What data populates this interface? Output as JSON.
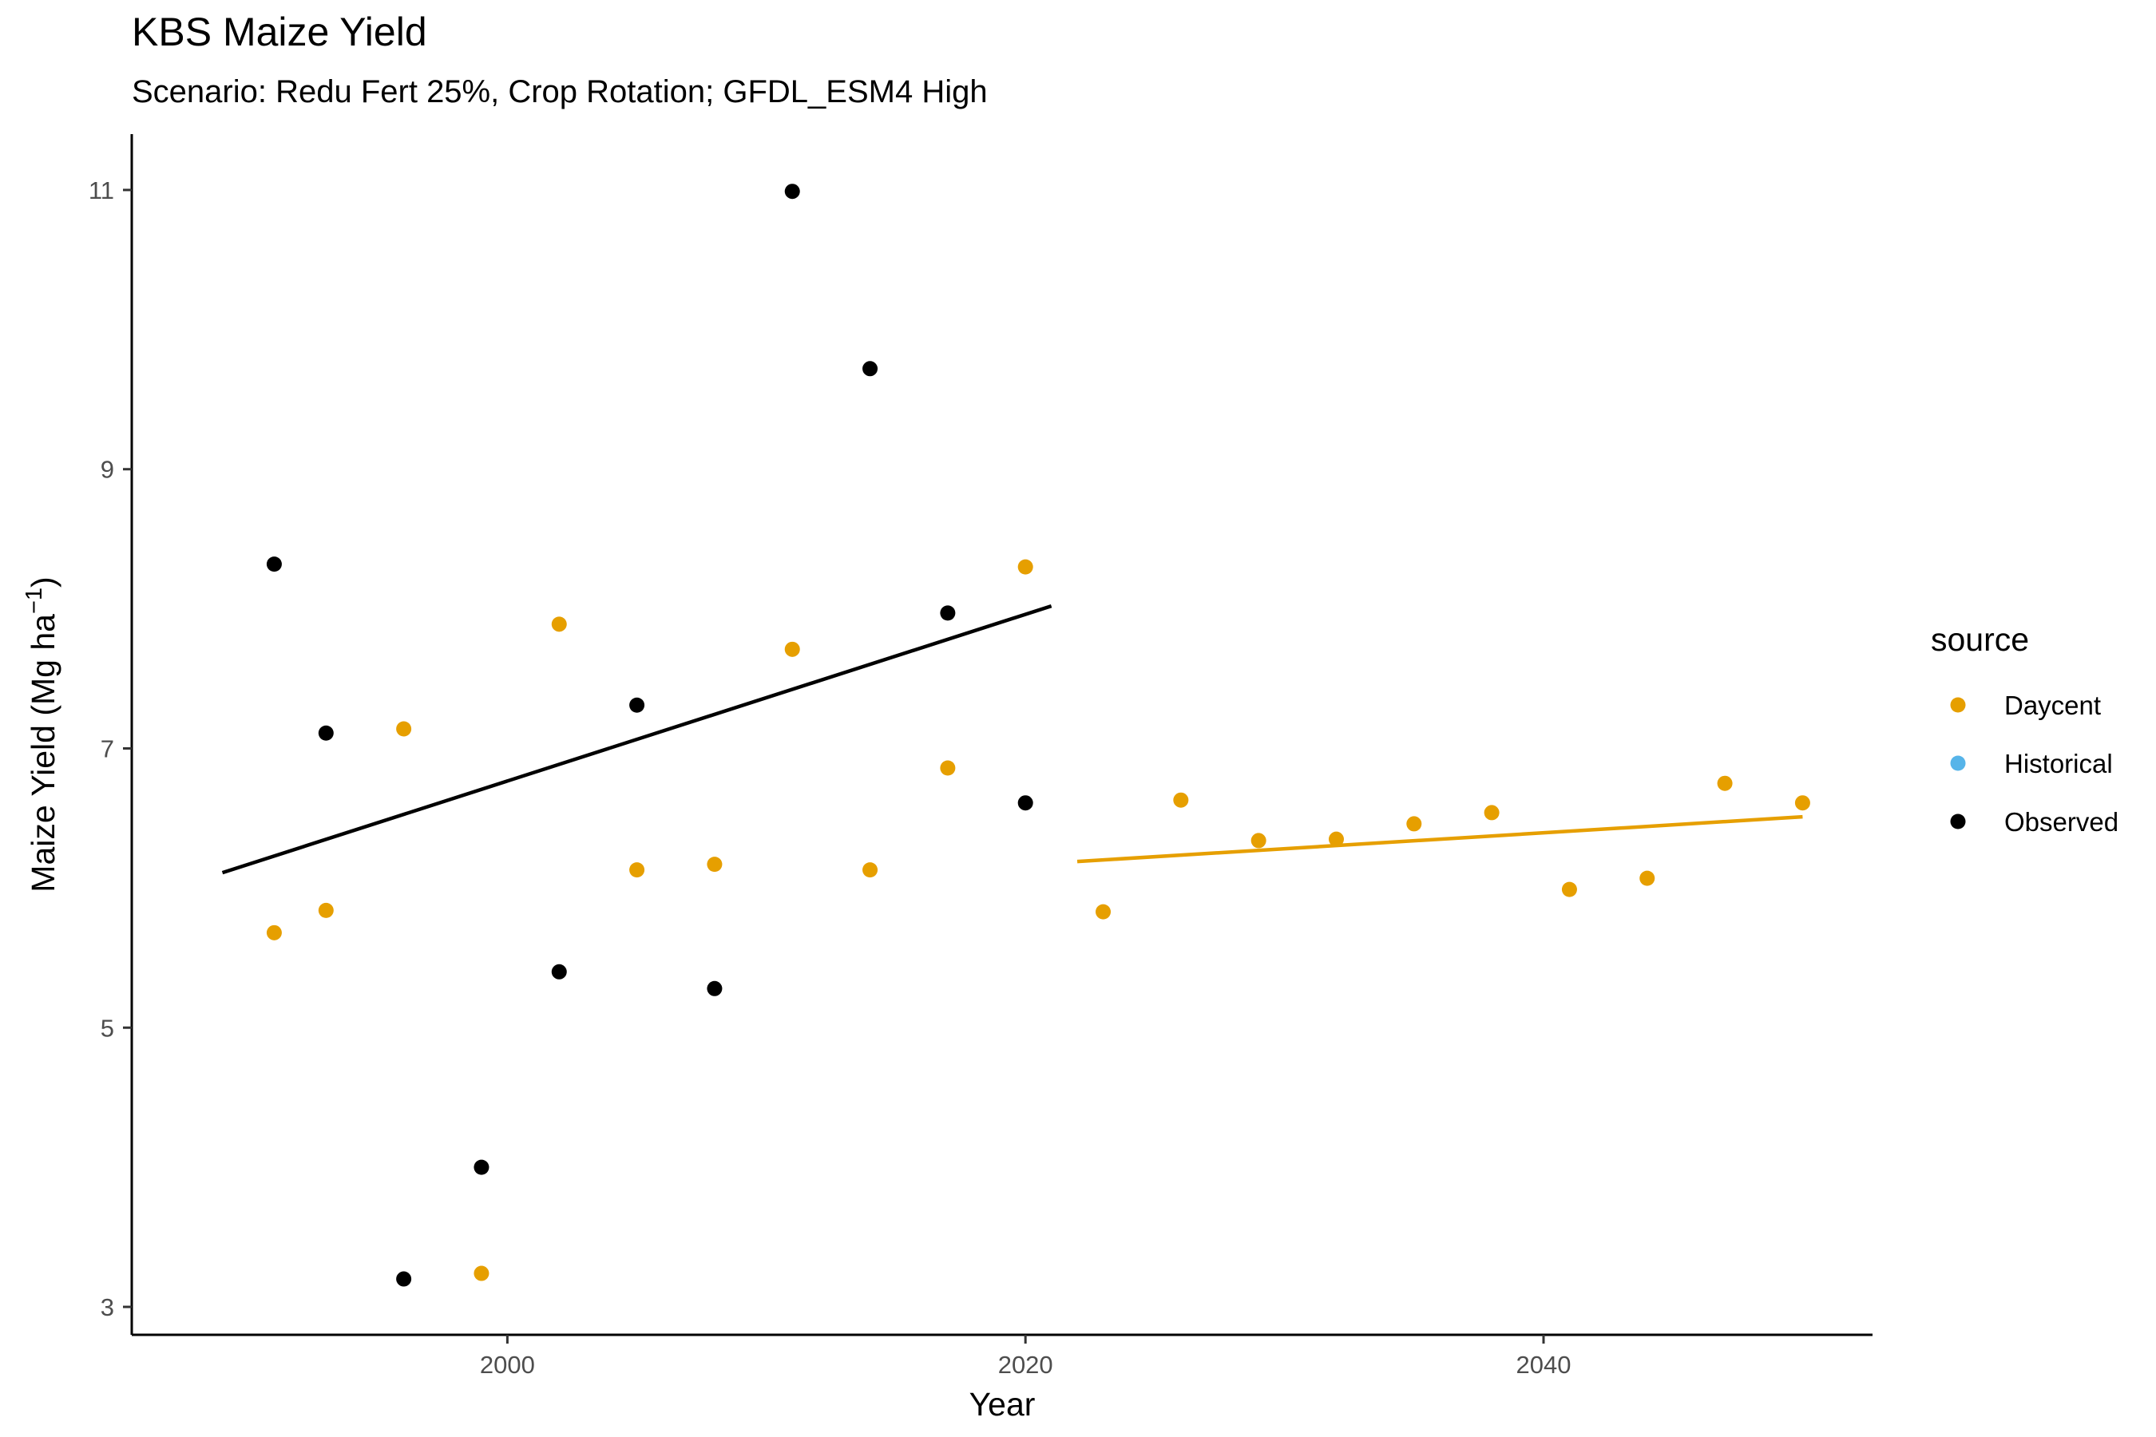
{
  "chart_data": {
    "type": "scatter",
    "title": "KBS Maize Yield",
    "subtitle": "Scenario: Redu Fert 25%, Crop Rotation; GFDL_ESM4 High",
    "xlabel": "Year",
    "ylabel": "Maize Yield (Mg ha",
    "ylabel_sup": "−1",
    "ylabel_close": ")",
    "xlim": [
      1985.5,
      2052.7
    ],
    "ylim": [
      2.8,
      11.4
    ],
    "x_ticks": [
      2000,
      2020,
      2040
    ],
    "x_tick_labels": [
      "2000",
      "2020",
      "2040"
    ],
    "y_ticks": [
      3,
      5,
      7,
      9,
      11
    ],
    "y_tick_labels": [
      "3",
      "5",
      "7",
      "9",
      "11"
    ],
    "grid": false,
    "legend": {
      "title": "source",
      "placement": "right",
      "entries": [
        {
          "label": "Daycent",
          "color": "#E69F00"
        },
        {
          "label": "Historical",
          "color": "#56B4E9"
        },
        {
          "label": "Observed",
          "color": "#000000"
        }
      ]
    },
    "series": [
      {
        "name": "Daycent",
        "color": "#E69F00",
        "points": [
          [
            1991,
            5.68
          ],
          [
            1993,
            5.84
          ],
          [
            1996,
            7.14
          ],
          [
            1999,
            3.24
          ],
          [
            2002,
            7.89
          ],
          [
            2005,
            6.13
          ],
          [
            2008,
            6.17
          ],
          [
            2011,
            7.71
          ],
          [
            2014,
            6.13
          ],
          [
            2017,
            6.86
          ],
          [
            2020,
            8.3
          ],
          [
            2023,
            5.83
          ],
          [
            2026,
            6.63
          ],
          [
            2029,
            6.34
          ],
          [
            2032,
            6.35
          ],
          [
            2035,
            6.46
          ],
          [
            2038,
            6.54
          ],
          [
            2041,
            5.99
          ],
          [
            2044,
            6.07
          ],
          [
            2047,
            6.75
          ],
          [
            2050,
            6.61
          ]
        ]
      },
      {
        "name": "Historical",
        "color": "#56B4E9",
        "points": []
      },
      {
        "name": "Observed",
        "color": "#000000",
        "points": [
          [
            1991,
            8.32
          ],
          [
            1993,
            7.11
          ],
          [
            1996,
            3.2
          ],
          [
            1999,
            4.0
          ],
          [
            2002,
            5.4
          ],
          [
            2005,
            7.31
          ],
          [
            2008,
            5.28
          ],
          [
            2011,
            10.99
          ],
          [
            2014,
            9.72
          ],
          [
            2017,
            7.97
          ],
          [
            2020,
            6.61
          ]
        ]
      }
    ],
    "trend_lines": [
      {
        "series": "Observed",
        "color": "#000000",
        "from": [
          1989,
          6.11
        ],
        "to": [
          2021,
          8.02
        ]
      },
      {
        "series": "Daycent",
        "color": "#E69F00",
        "from": [
          2022,
          6.19
        ],
        "to": [
          2050,
          6.51
        ]
      }
    ]
  }
}
